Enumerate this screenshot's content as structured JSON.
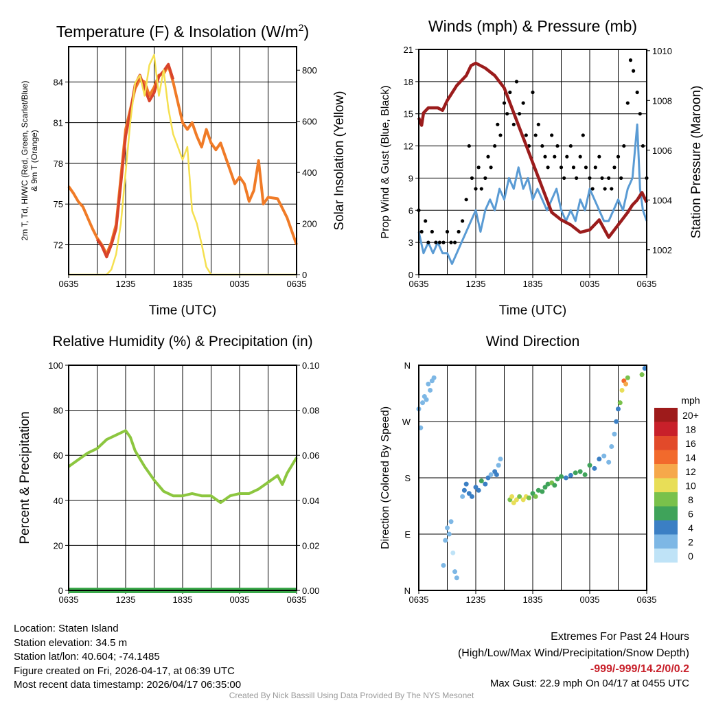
{
  "chart_data": [
    {
      "type": "line",
      "title": "Temperature (F) & Insolation (W/m²)",
      "title_main": "Temperature (F) & Insolation (W/m",
      "title_sup": "2",
      "title_end": ")",
      "xlabel": "Time (UTC)",
      "ylabel_line1": "2m T, Td, HI/WC (Red, Green, Scarlet/Blue)",
      "ylabel_line2": "& 9m T (Orange)",
      "y2label": "Solar Insolation (Yellow)",
      "xticks": [
        "0635",
        "1235",
        "1835",
        "0035",
        "0635"
      ],
      "ylim": [
        69.8,
        86.6
      ],
      "yticks": [
        72,
        75,
        78,
        81,
        84
      ],
      "y2lim": [
        0,
        892
      ],
      "y2ticks": [
        0,
        200,
        400,
        600,
        800
      ],
      "series": [
        {
          "name": "9m T",
          "axis": "left",
          "color": "#f07b27",
          "x": [
            0,
            0.5,
            1,
            1.5,
            2,
            2.5,
            3,
            3.5,
            4,
            4.5,
            5,
            5.5,
            6,
            6.5,
            7,
            7.5,
            8,
            8.5,
            9,
            9.5,
            10,
            10.5,
            11,
            11.5,
            12,
            12.5,
            13,
            13.5,
            14,
            14.5,
            15,
            15.5,
            16,
            16.5,
            17,
            17.5,
            18,
            18.5,
            19,
            19.5,
            20,
            20.5,
            21,
            22,
            23,
            24
          ],
          "y": [
            76.3,
            75.8,
            75.2,
            74.8,
            74.0,
            73.2,
            72.5,
            72.0,
            71.3,
            72.2,
            73.5,
            77,
            80.5,
            82,
            83.5,
            84.2,
            84,
            83,
            83.6,
            84.5,
            84.6,
            85.2,
            84,
            82.5,
            81,
            80.5,
            81,
            80,
            79.2,
            80.5,
            79.5,
            79,
            79.5,
            78.5,
            77.5,
            76.5,
            77,
            76.5,
            75.2,
            76,
            78.2,
            75,
            75.5,
            75.4,
            74,
            72
          ]
        },
        {
          "name": "2m T",
          "axis": "left",
          "color": "#d9442a",
          "x": [
            3,
            3.5,
            4,
            4.5,
            5,
            5.5,
            6,
            6.5,
            7,
            7.5,
            8,
            8.5,
            9,
            9.5,
            10,
            10.5,
            11
          ],
          "y": [
            72.4,
            71.9,
            71.1,
            72,
            73.2,
            76.5,
            80,
            81.8,
            83.8,
            84.5,
            83.5,
            82.6,
            83.2,
            84.4,
            84.8,
            85.3,
            84.2
          ]
        },
        {
          "name": "Solar Insolation",
          "axis": "right",
          "color": "#f5e050",
          "x": [
            0,
            4,
            4.5,
            5,
            5.5,
            6,
            6.5,
            7,
            7.5,
            8,
            8.5,
            9,
            9.5,
            10,
            10.5,
            11,
            11.5,
            12,
            12.5,
            13,
            13.5,
            14,
            14.5,
            15,
            24
          ],
          "y": [
            0,
            0,
            20,
            80,
            200,
            400,
            600,
            750,
            780,
            700,
            820,
            860,
            700,
            800,
            650,
            550,
            500,
            450,
            500,
            250,
            200,
            120,
            30,
            0,
            0
          ]
        }
      ]
    },
    {
      "type": "line",
      "title": "Winds (mph) & Pressure (mb)",
      "xlabel": "Time (UTC)",
      "ylabel": "Prop Wind & Gust (Blue, Black)",
      "y2label": "Station Pressure (Maroon)",
      "xticks": [
        "0635",
        "1235",
        "1835",
        "0035",
        "0635"
      ],
      "ylim": [
        0,
        21
      ],
      "yticks": [
        0,
        3,
        6,
        9,
        12,
        15,
        18,
        21
      ],
      "y2lim": [
        1001,
        1010.05
      ],
      "y2ticks": [
        1002,
        1004,
        1006,
        1008,
        1010
      ],
      "series": [
        {
          "name": "Prop Wind",
          "axis": "left",
          "color": "#5a9bd4",
          "x": [
            0,
            0.5,
            1,
            1.5,
            2,
            2.5,
            3,
            3.5,
            4,
            4.5,
            5,
            5.5,
            6,
            6.5,
            7,
            7.5,
            8,
            8.5,
            9,
            9.5,
            10,
            10.5,
            11,
            11.5,
            12,
            12.5,
            13,
            13.5,
            14,
            14.5,
            15,
            15.5,
            16,
            16.5,
            17,
            17.5,
            18,
            18.5,
            19,
            19.5,
            20,
            20.5,
            21,
            21.5,
            22,
            22.5,
            23,
            23.3,
            23.6,
            24
          ],
          "y": [
            4,
            2,
            3,
            2,
            3,
            2,
            2,
            1,
            2,
            3,
            4,
            5,
            6,
            4,
            6,
            7,
            6,
            8,
            7,
            9,
            8,
            10,
            8,
            9,
            7,
            8,
            7,
            6,
            7,
            8,
            6,
            5,
            6,
            5,
            7,
            6,
            8,
            7,
            6,
            5,
            5,
            6,
            7,
            6,
            8,
            9,
            14,
            8,
            6,
            5
          ]
        },
        {
          "name": "Gust",
          "axis": "left",
          "color": "#000000",
          "marker": "dot",
          "x": [
            0,
            0.3,
            0.7,
            1,
            1.4,
            1.8,
            2.2,
            2.6,
            3,
            3.4,
            3.8,
            4.2,
            4.6,
            5,
            5.3,
            5.6,
            6,
            6.3,
            6.6,
            7,
            7.3,
            7.6,
            8,
            8.3,
            8.6,
            9,
            9.3,
            9.6,
            10,
            10.3,
            10.6,
            11,
            11.3,
            11.6,
            12,
            12.3,
            12.6,
            13,
            13.3,
            13.6,
            14,
            14.3,
            14.6,
            15,
            15.3,
            15.6,
            16,
            16.3,
            16.6,
            17,
            17.3,
            17.6,
            18,
            18.3,
            18.6,
            19,
            19.3,
            19.6,
            20,
            20.3,
            20.6,
            21,
            21.3,
            21.6,
            22,
            22.3,
            22.6,
            23,
            23.3,
            23.6,
            24
          ],
          "y": [
            6,
            4,
            5,
            3,
            4,
            3,
            3,
            3,
            4,
            3,
            3,
            4,
            5,
            7,
            12,
            9,
            8,
            10,
            8,
            9,
            11,
            10,
            12,
            14,
            13,
            16,
            15,
            17,
            14,
            18,
            15,
            16,
            13,
            12,
            17,
            13,
            14,
            12,
            11,
            10,
            13,
            11,
            12,
            10,
            9,
            11,
            12,
            10,
            9,
            11,
            13,
            10,
            9,
            8,
            10,
            11,
            9,
            8,
            9,
            8,
            10,
            11,
            9,
            12,
            16,
            20,
            19,
            17,
            15,
            12,
            9
          ]
        },
        {
          "name": "Station Pressure",
          "axis": "right",
          "color": "#9b1c1c",
          "x": [
            0,
            0.3,
            0.5,
            1,
            2,
            2.5,
            3,
            4,
            5,
            5.5,
            6,
            7,
            8,
            9,
            10,
            11,
            12,
            13,
            14,
            15,
            16,
            17,
            18,
            19,
            20,
            21,
            22,
            22.5,
            23,
            23.5,
            24
          ],
          "y": [
            1007.3,
            1007,
            1007.5,
            1007.7,
            1007.7,
            1007.6,
            1008,
            1008.6,
            1009.0,
            1009.4,
            1009.5,
            1009.3,
            1009,
            1008.5,
            1007.5,
            1006.5,
            1005.5,
            1004.5,
            1003.5,
            1003.2,
            1003,
            1002.7,
            1002.8,
            1003.2,
            1002.5,
            1003,
            1003.5,
            1003.8,
            1004,
            1004.3,
            1003.9
          ]
        }
      ]
    },
    {
      "type": "line",
      "title": "Relative Humidity (%) & Precipitation (in)",
      "ylabel": "Percent & Precipitation",
      "xticks": [
        "0635",
        "1235",
        "1835",
        "0035",
        "0635"
      ],
      "ylim": [
        0,
        100
      ],
      "yticks": [
        0,
        20,
        40,
        60,
        80,
        100
      ],
      "y2lim": [
        0,
        0.1
      ],
      "y2ticks": [
        "0.00",
        "0.02",
        "0.04",
        "0.06",
        "0.08",
        "0.10"
      ],
      "series": [
        {
          "name": "Relative Humidity",
          "color": "#8cc63f",
          "x": [
            0,
            1,
            2,
            3,
            4,
            5,
            6,
            6.5,
            7,
            8,
            9,
            10,
            11,
            12,
            13,
            14,
            15,
            16,
            17,
            18,
            19,
            20,
            21,
            22,
            22.5,
            23,
            24
          ],
          "y": [
            55,
            58,
            61,
            63,
            67,
            69,
            71,
            68,
            62,
            55,
            49,
            44,
            42,
            42,
            43,
            42,
            42,
            39,
            42,
            43,
            43,
            45,
            48,
            51,
            47,
            52,
            59
          ]
        },
        {
          "name": "Precipitation",
          "color": "#3aa84a",
          "x": [
            0,
            24
          ],
          "y": [
            0,
            0
          ]
        }
      ]
    },
    {
      "type": "scatter",
      "title": "Wind Direction",
      "ylabel": "Direction (Colored By Speed)",
      "xticks": [
        "0635",
        "1235",
        "1835",
        "0035",
        "0635"
      ],
      "yticks": [
        "N",
        "E",
        "S",
        "W",
        "N"
      ],
      "ylim": [
        0,
        360
      ],
      "colorbar": {
        "label": "mph",
        "ticks": [
          "20+",
          "18",
          "16",
          "14",
          "12",
          "10",
          "8",
          "6",
          "4",
          "2",
          "0"
        ],
        "colors": [
          "#9e1b1b",
          "#c8202a",
          "#e24a2a",
          "#f26a2c",
          "#f6a84a",
          "#e8de57",
          "#79c14b",
          "#3fa35a",
          "#3b7fc4",
          "#7db7e5",
          "#bfe3f7"
        ]
      },
      "points": {
        "x": [
          0,
          0.2,
          0.4,
          0.6,
          0.8,
          1,
          1.2,
          1.4,
          1.6,
          2.6,
          2.8,
          3,
          3.2,
          3.4,
          3.6,
          3.8,
          4,
          4.6,
          4.8,
          5,
          5.3,
          5.6,
          6,
          6.3,
          6.6,
          7,
          7.3,
          7.6,
          8,
          8.2,
          8.4,
          8.6,
          9.6,
          9.8,
          10,
          10.3,
          10.6,
          11,
          11.3,
          11.6,
          12,
          12.3,
          12.6,
          13,
          13.3,
          13.6,
          14,
          14.3,
          14.6,
          15,
          15.5,
          16,
          16.5,
          17,
          17.5,
          18,
          18.5,
          19,
          19.5,
          20,
          20.3,
          20.6,
          20.8,
          21,
          21.2,
          21.4,
          21.6,
          21.8,
          22,
          23.5,
          23.8
        ],
        "dir": [
          290,
          260,
          300,
          310,
          305,
          330,
          320,
          335,
          340,
          40,
          80,
          100,
          90,
          110,
          60,
          30,
          20,
          150,
          160,
          170,
          155,
          150,
          165,
          160,
          175,
          170,
          180,
          185,
          190,
          185,
          200,
          210,
          145,
          150,
          140,
          145,
          150,
          145,
          150,
          148,
          155,
          150,
          160,
          158,
          165,
          170,
          172,
          168,
          178,
          182,
          180,
          184,
          188,
          190,
          185,
          200,
          195,
          210,
          215,
          205,
          230,
          250,
          270,
          290,
          300,
          320,
          335,
          330,
          340,
          345,
          355
        ],
        "speed": [
          3,
          2,
          2,
          2,
          3,
          2,
          2,
          2,
          2,
          2,
          2,
          3,
          2,
          2,
          1,
          2,
          2,
          2,
          4,
          4,
          5,
          4,
          5,
          4,
          6,
          5,
          4,
          3,
          4,
          5,
          3,
          2,
          8,
          10,
          11,
          10,
          9,
          11,
          10,
          8,
          7,
          8,
          6,
          7,
          7,
          6,
          8,
          7,
          7,
          6,
          5,
          4,
          6,
          7,
          6,
          7,
          5,
          4,
          3,
          3,
          3,
          3,
          4,
          4,
          9,
          10,
          14,
          12,
          9,
          8,
          4
        ]
      }
    }
  ],
  "footer": {
    "location": "Location: Staten Island",
    "elevation": "Station elevation: 34.5 m",
    "latlon": "Station lat/lon: 40.604; -74.1485",
    "created": "Figure created on Fri, 2026-04-17, at 06:39 UTC",
    "recent": "Most recent data timestamp: 2026/04/17 06:35:00",
    "extremes_title": "Extremes For Past 24 Hours",
    "extremes_legend": "(High/Low/Max Wind/Precipitation/Snow Depth)",
    "extremes_values": "-999/-999/14.2/0/0.2",
    "max_gust": "Max Gust: 22.9 mph On 04/17 at 0455 UTC",
    "credit": "Created By Nick Bassill Using Data Provided By The NYS Mesonet"
  }
}
